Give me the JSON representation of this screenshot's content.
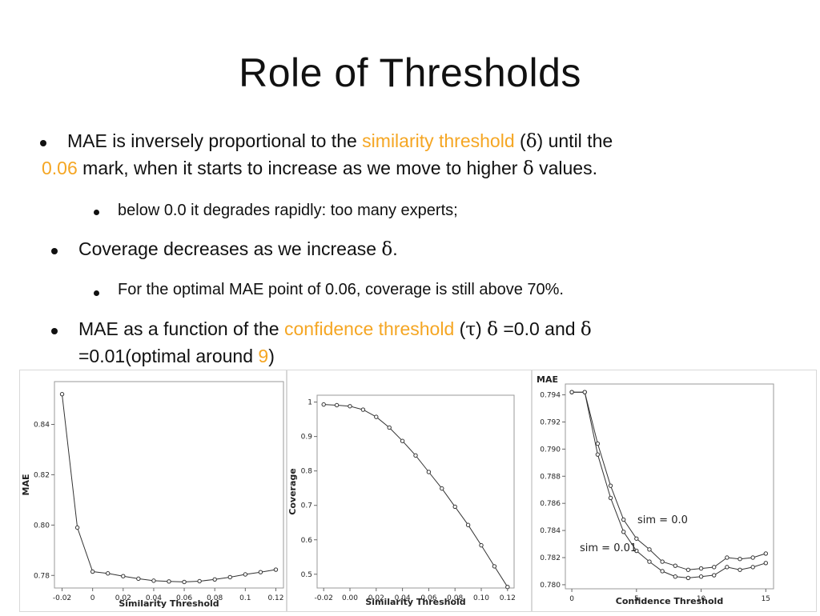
{
  "slide": {
    "title": "Role of Thresholds",
    "bullets": [
      {
        "t1": "MAE is inversely proportional to the ",
        "h1": "similarity threshold",
        "t2": " (",
        "s1": "δ",
        "t3": ") until the",
        "h2": "0.06",
        "t4": " mark, when it starts to increase as we move to higher ",
        "s2": "δ",
        "t5": " values."
      },
      {
        "text": "below 0.0 it degrades rapidly: too many experts;"
      },
      {
        "t1": "Coverage decreases as we increase ",
        "s1": "δ",
        "t2": "."
      },
      {
        "text": "For the optimal MAE point of 0.06, coverage is still above 70%."
      },
      {
        "t1": "MAE as a function of the ",
        "h1": "confidence threshold",
        "t2": " (",
        "s1": "τ",
        "t3": ") ",
        "s2": "δ",
        "t4": " =0.0 and ",
        "s3": "δ",
        "t5": "=0.01(optimal around ",
        "h2": "9",
        "t6": ")"
      }
    ],
    "highlight_color": "#f5a623"
  },
  "chart_data": [
    {
      "type": "line",
      "xlabel": "Similarity Threshold",
      "ylabel": "MAE",
      "xlim": [
        -0.025,
        0.125
      ],
      "ylim": [
        0.775,
        0.857
      ],
      "xticks": [
        "-0.02",
        "0",
        "0.02",
        "0.04",
        "0.06",
        "0.08",
        "0.1",
        "0.12"
      ],
      "yticks": [
        "0.78",
        "0.80",
        "0.82",
        "0.84"
      ],
      "series": [
        {
          "x": [
            -0.02,
            -0.01,
            0,
            0.01,
            0.02,
            0.03,
            0.04,
            0.05,
            0.06,
            0.07,
            0.08,
            0.09,
            0.1,
            0.11,
            0.12
          ],
          "values": [
            0.852,
            0.799,
            0.7815,
            0.7808,
            0.7797,
            0.7787,
            0.7779,
            0.7776,
            0.7774,
            0.7777,
            0.7784,
            0.7793,
            0.7804,
            0.7813,
            0.7823
          ]
        }
      ]
    },
    {
      "type": "line",
      "xlabel": "Similarity Threshold",
      "ylabel": "Coverage",
      "xlim": [
        -0.025,
        0.125
      ],
      "ylim": [
        0.46,
        1.02
      ],
      "xticks": [
        "-0.02",
        "0.00",
        "0.02",
        "0.04",
        "0.06",
        "0.08",
        "0.10",
        "0.12"
      ],
      "yticks": [
        "0.5",
        "0.6",
        "0.7",
        "0.8",
        "0.9",
        "1"
      ],
      "series": [
        {
          "x": [
            -0.02,
            -0.01,
            0,
            0.01,
            0.02,
            0.03,
            0.04,
            0.05,
            0.06,
            0.07,
            0.08,
            0.09,
            0.1,
            0.11,
            0.12
          ],
          "values": [
            0.993,
            0.991,
            0.988,
            0.978,
            0.957,
            0.926,
            0.887,
            0.845,
            0.797,
            0.749,
            0.696,
            0.643,
            0.584,
            0.523,
            0.463
          ]
        }
      ]
    },
    {
      "type": "line",
      "xlabel": "Confidence Threshold",
      "ylabel": "MAE",
      "xlim": [
        -0.5,
        15.6
      ],
      "ylim": [
        0.7797,
        0.7948
      ],
      "xticks": [
        "0",
        "5",
        "10",
        "15"
      ],
      "yticks": [
        "0.780",
        "0.782",
        "0.784",
        "0.786",
        "0.788",
        "0.790",
        "0.792",
        "0.794"
      ],
      "annotations": [
        "sim = 0.0",
        "sim = 0.01"
      ],
      "series": [
        {
          "name": "sim = 0.0",
          "x": [
            0,
            1,
            2,
            3,
            4,
            5,
            6,
            7,
            8,
            9,
            10,
            11,
            12,
            13,
            14,
            15
          ],
          "values": [
            0.7942,
            0.7942,
            0.7904,
            0.7873,
            0.7848,
            0.7834,
            0.7826,
            0.7817,
            0.7814,
            0.7811,
            0.7812,
            0.7813,
            0.782,
            0.7819,
            0.782,
            0.7823
          ]
        },
        {
          "name": "sim = 0.01",
          "x": [
            0,
            1,
            2,
            3,
            4,
            5,
            6,
            7,
            8,
            9,
            10,
            11,
            12,
            13,
            14,
            15
          ],
          "values": [
            0.7942,
            0.7942,
            0.7896,
            0.7864,
            0.7839,
            0.7825,
            0.7817,
            0.781,
            0.7806,
            0.7805,
            0.7806,
            0.7807,
            0.7813,
            0.7811,
            0.7813,
            0.7816
          ]
        }
      ]
    }
  ]
}
